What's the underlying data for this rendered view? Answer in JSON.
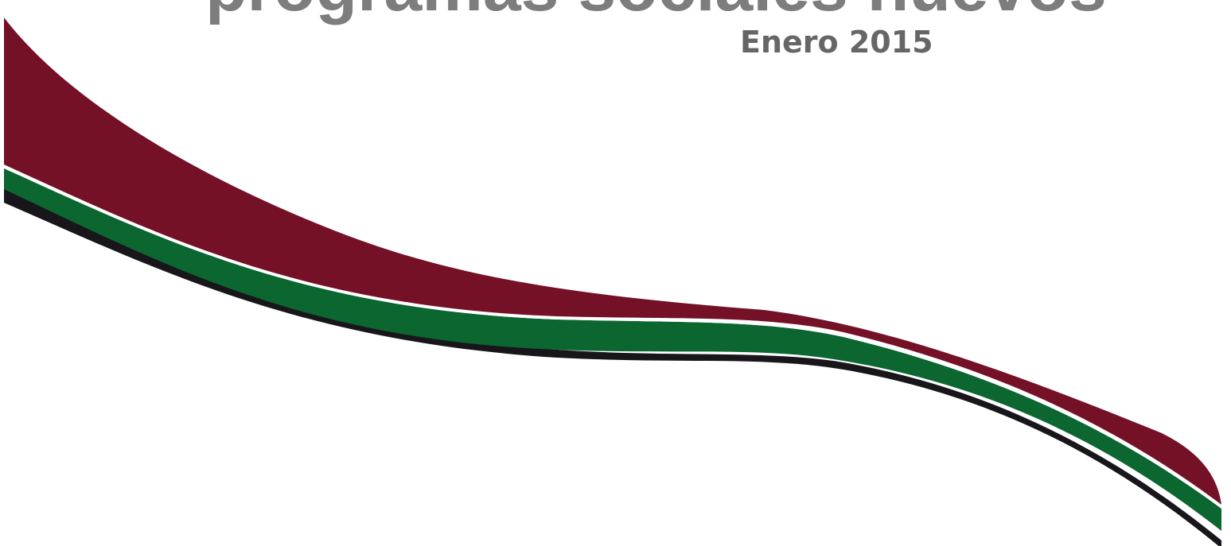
{
  "slide": {
    "title_visible_fragment": "programas sociales nuevos",
    "date": "Enero 2015"
  },
  "decoration": {
    "ribbon_colors": {
      "maroon": "#741127",
      "green": "#0b6630",
      "black": "#18161a",
      "highlight": "#ffffff"
    }
  }
}
